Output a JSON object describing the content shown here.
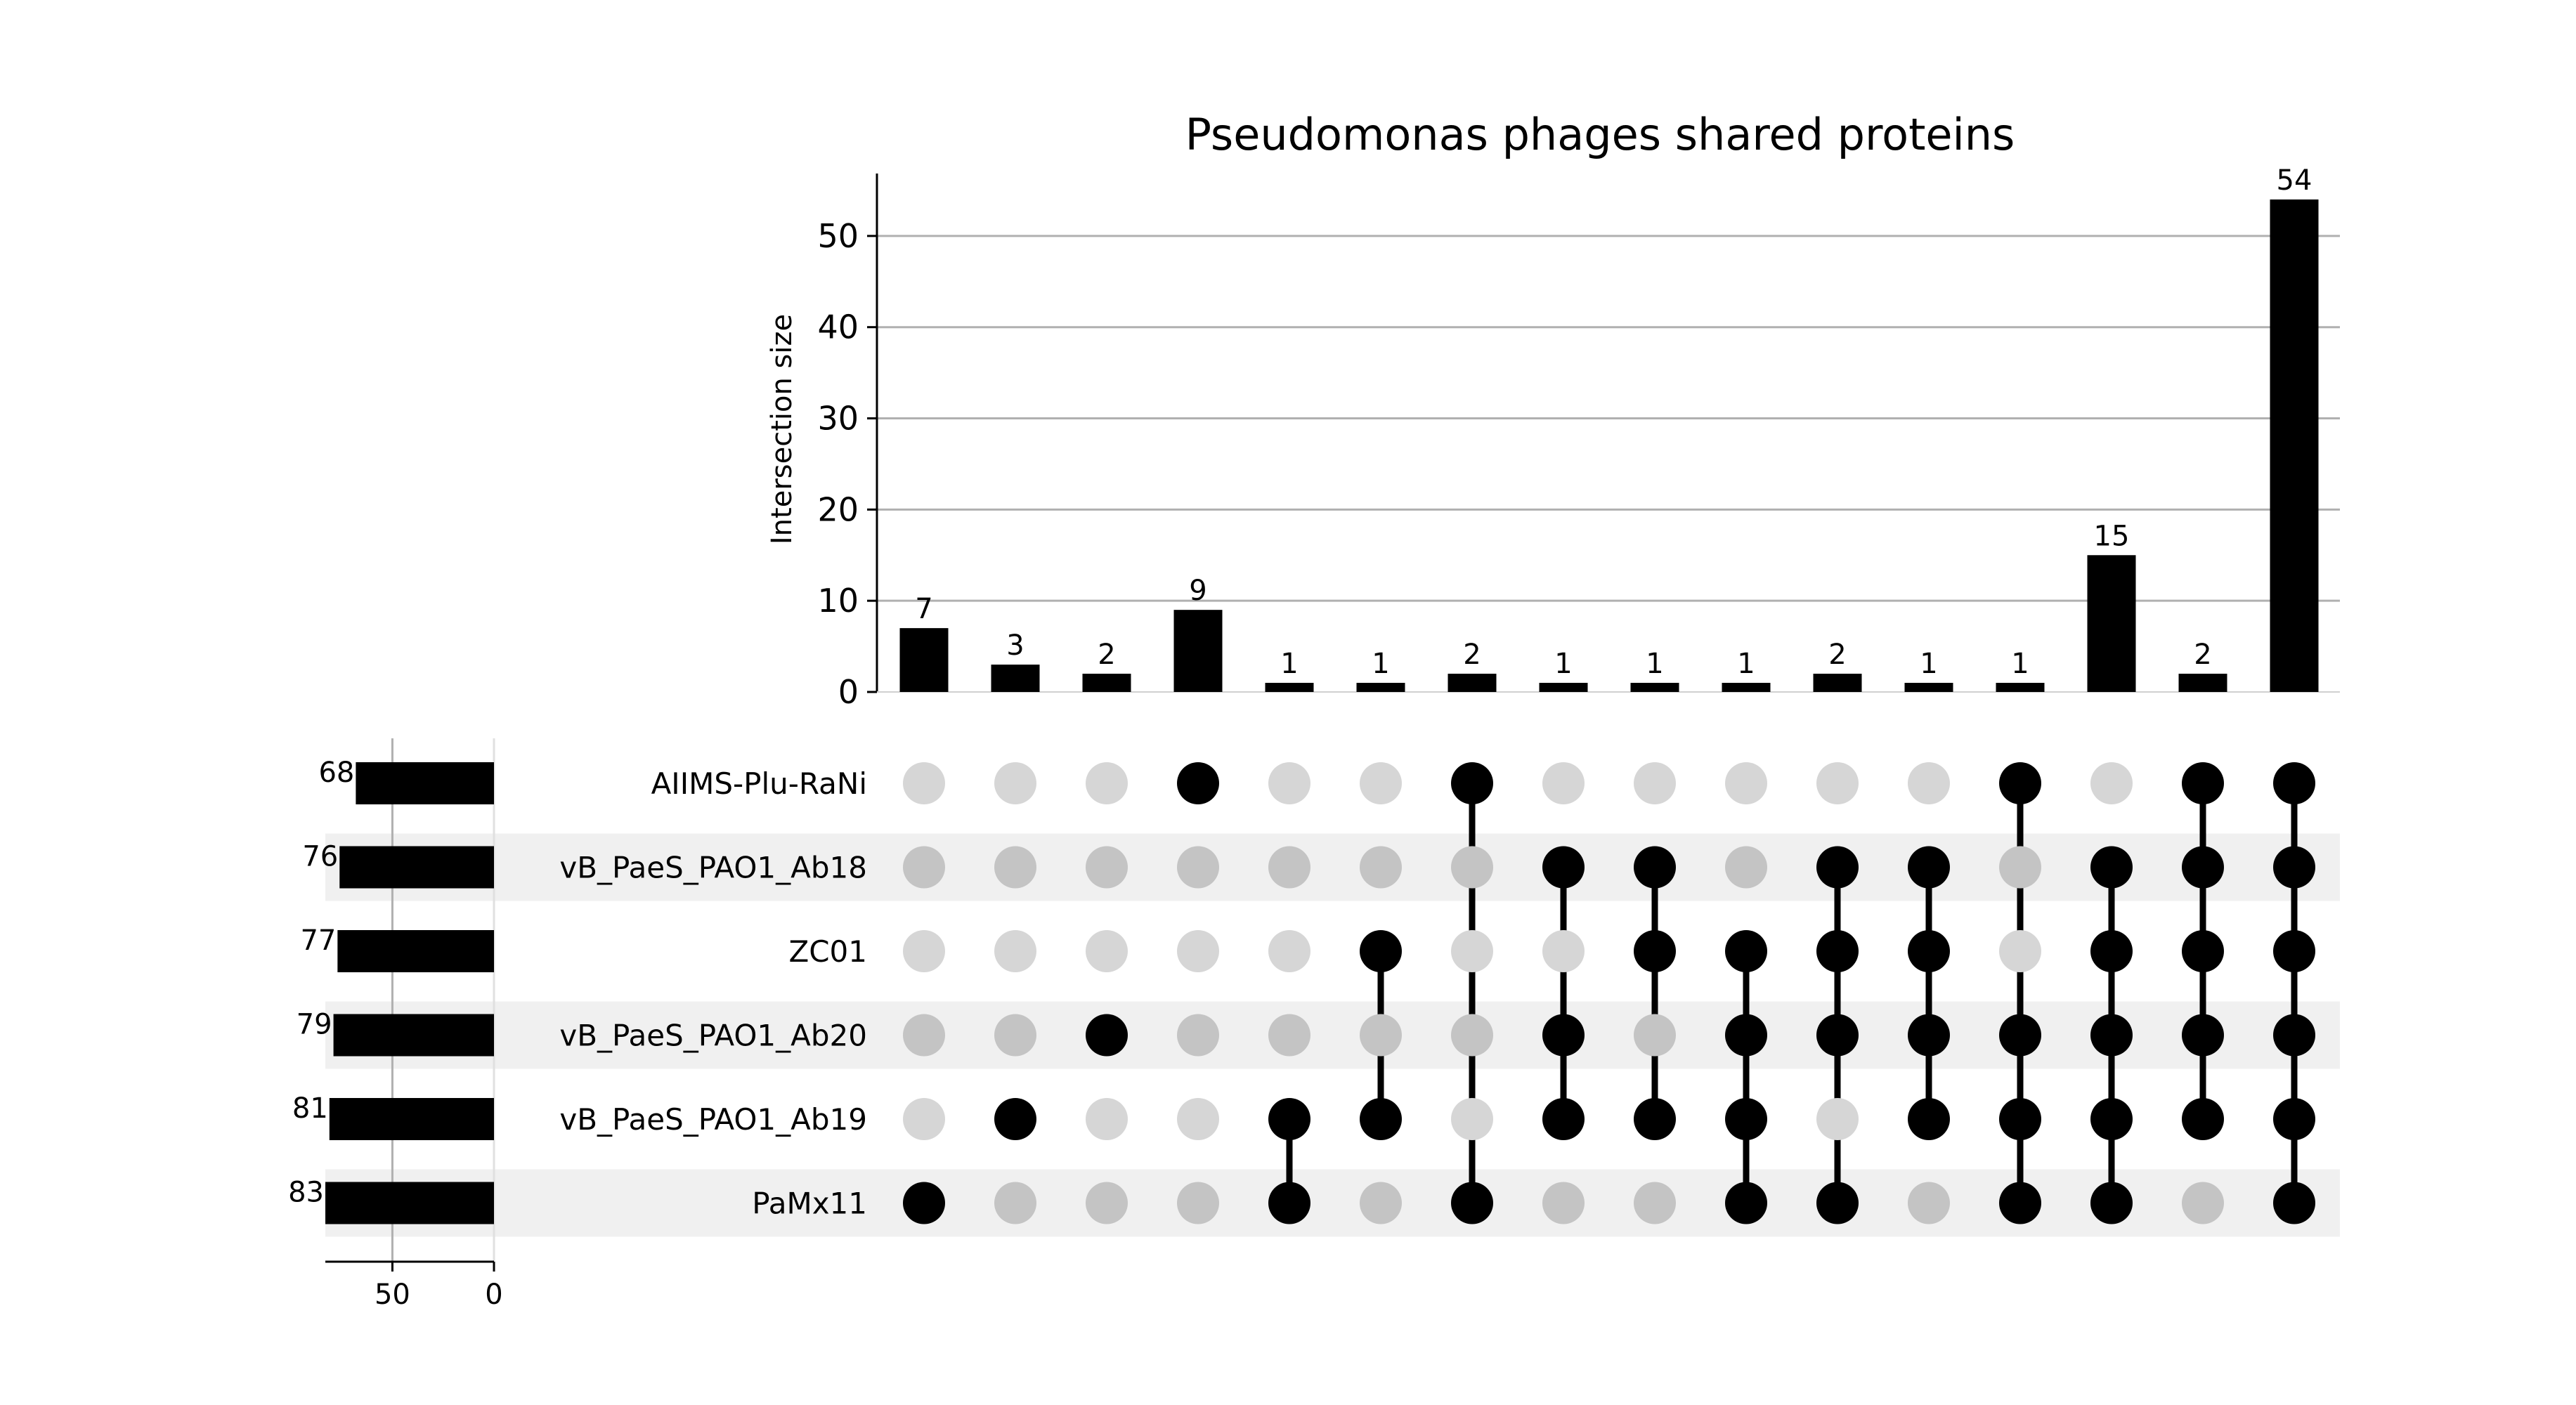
{
  "chart_data": {
    "type": "upset",
    "title": "Pseudomonas phages shared proteins",
    "ylabel": "Intersection size",
    "ylim": [
      0,
      57
    ],
    "yticks": [
      0,
      10,
      20,
      30,
      40,
      50
    ],
    "grid": true,
    "sets": [
      {
        "name": "AIIMS-Plu-RaNi",
        "size": 68
      },
      {
        "name": "vB_PaeS_PAO1_Ab18",
        "size": 76
      },
      {
        "name": "ZC01",
        "size": 77
      },
      {
        "name": "vB_PaeS_PAO1_Ab20",
        "size": 79
      },
      {
        "name": "vB_PaeS_PAO1_Ab19",
        "size": 81
      },
      {
        "name": "PaMx11",
        "size": 83
      }
    ],
    "set_size_axis": {
      "ticks": [
        50,
        0
      ],
      "max": 83
    },
    "intersections": [
      {
        "members": [
          "PaMx11"
        ],
        "size": 7
      },
      {
        "members": [
          "vB_PaeS_PAO1_Ab19"
        ],
        "size": 3
      },
      {
        "members": [
          "vB_PaeS_PAO1_Ab20"
        ],
        "size": 2
      },
      {
        "members": [
          "AIIMS-Plu-RaNi"
        ],
        "size": 9
      },
      {
        "members": [
          "vB_PaeS_PAO1_Ab19",
          "PaMx11"
        ],
        "size": 1
      },
      {
        "members": [
          "ZC01",
          "vB_PaeS_PAO1_Ab19"
        ],
        "size": 1
      },
      {
        "members": [
          "AIIMS-Plu-RaNi",
          "PaMx11"
        ],
        "size": 2
      },
      {
        "members": [
          "vB_PaeS_PAO1_Ab18",
          "vB_PaeS_PAO1_Ab20",
          "vB_PaeS_PAO1_Ab19"
        ],
        "size": 1
      },
      {
        "members": [
          "vB_PaeS_PAO1_Ab18",
          "ZC01",
          "vB_PaeS_PAO1_Ab19"
        ],
        "size": 1
      },
      {
        "members": [
          "ZC01",
          "vB_PaeS_PAO1_Ab20",
          "vB_PaeS_PAO1_Ab19",
          "PaMx11"
        ],
        "size": 1
      },
      {
        "members": [
          "vB_PaeS_PAO1_Ab18",
          "ZC01",
          "vB_PaeS_PAO1_Ab20",
          "PaMx11"
        ],
        "size": 2
      },
      {
        "members": [
          "vB_PaeS_PAO1_Ab18",
          "ZC01",
          "vB_PaeS_PAO1_Ab20",
          "vB_PaeS_PAO1_Ab19"
        ],
        "size": 1
      },
      {
        "members": [
          "AIIMS-Plu-RaNi",
          "vB_PaeS_PAO1_Ab20",
          "vB_PaeS_PAO1_Ab19",
          "PaMx11"
        ],
        "size": 1
      },
      {
        "members": [
          "vB_PaeS_PAO1_Ab18",
          "ZC01",
          "vB_PaeS_PAO1_Ab20",
          "vB_PaeS_PAO1_Ab19",
          "PaMx11"
        ],
        "size": 15
      },
      {
        "members": [
          "AIIMS-Plu-RaNi",
          "vB_PaeS_PAO1_Ab18",
          "ZC01",
          "vB_PaeS_PAO1_Ab20",
          "vB_PaeS_PAO1_Ab19"
        ],
        "size": 2
      },
      {
        "members": [
          "AIIMS-Plu-RaNi",
          "vB_PaeS_PAO1_Ab18",
          "ZC01",
          "vB_PaeS_PAO1_Ab20",
          "vB_PaeS_PAO1_Ab19",
          "PaMx11"
        ],
        "size": 54
      }
    ],
    "colors": {
      "bar": "#000000",
      "dot_active": "#000000",
      "dot_inactive_light_row": "#d6d6d6",
      "dot_inactive_shaded_row": "#c4c4c4",
      "row_shade": "#f0f0f0",
      "grid": "#b0b0b0"
    }
  }
}
